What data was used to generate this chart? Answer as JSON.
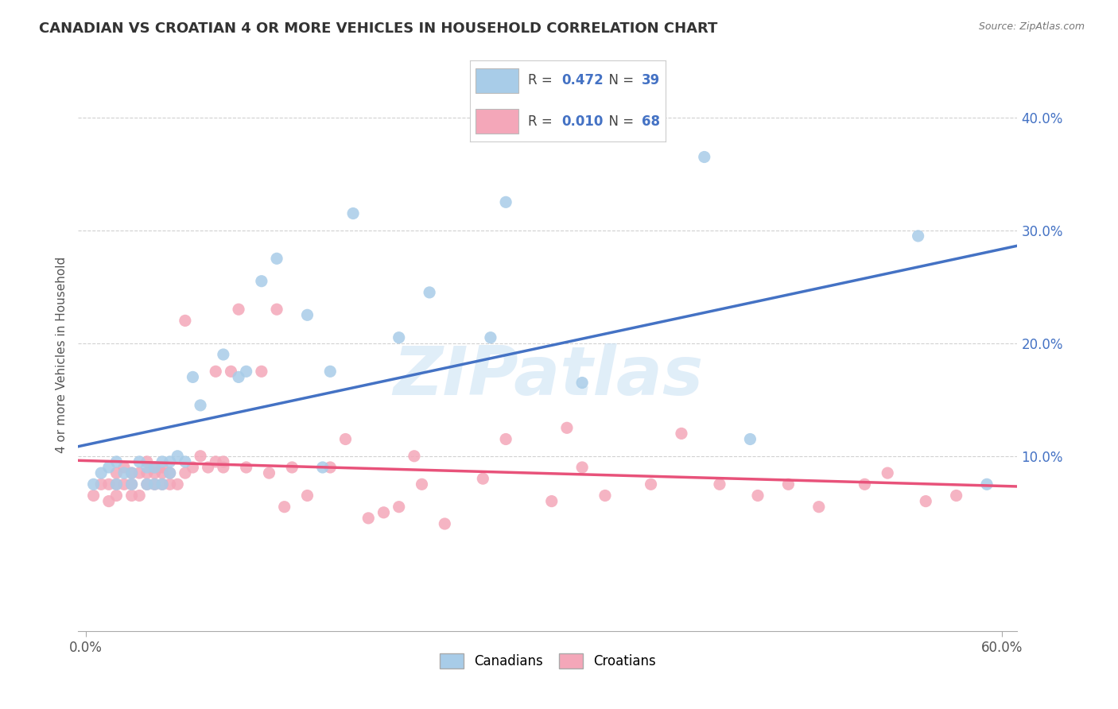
{
  "title": "CANADIAN VS CROATIAN 4 OR MORE VEHICLES IN HOUSEHOLD CORRELATION CHART",
  "source": "Source: ZipAtlas.com",
  "ylabel": "4 or more Vehicles in Household",
  "watermark": "ZIPatlas",
  "xlim": [
    -0.005,
    0.61
  ],
  "ylim": [
    -0.055,
    0.435
  ],
  "ytick_vals": [
    0.1,
    0.2,
    0.3,
    0.4
  ],
  "ytick_labels": [
    "10.0%",
    "20.0%",
    "30.0%",
    "40.0%"
  ],
  "xtick_vals": [
    0.0,
    0.6
  ],
  "xtick_labels": [
    "0.0%",
    "60.0%"
  ],
  "canadian_R": 0.472,
  "canadian_N": 39,
  "croatian_R": 0.01,
  "croatian_N": 68,
  "canadian_color": "#A8CCE8",
  "croatian_color": "#F4A7B9",
  "trendline_canadian_color": "#4472C4",
  "trendline_croatian_color": "#E8527A",
  "background_color": "#FFFFFF",
  "grid_color": "#CCCCCC",
  "canadians_x": [
    0.005,
    0.01,
    0.015,
    0.02,
    0.02,
    0.025,
    0.03,
    0.03,
    0.035,
    0.04,
    0.04,
    0.045,
    0.045,
    0.05,
    0.05,
    0.055,
    0.055,
    0.06,
    0.065,
    0.07,
    0.075,
    0.09,
    0.1,
    0.105,
    0.115,
    0.125,
    0.145,
    0.155,
    0.16,
    0.175,
    0.205,
    0.225,
    0.265,
    0.275,
    0.325,
    0.405,
    0.435,
    0.545,
    0.59
  ],
  "canadians_y": [
    0.075,
    0.085,
    0.09,
    0.075,
    0.095,
    0.085,
    0.075,
    0.085,
    0.095,
    0.075,
    0.09,
    0.075,
    0.09,
    0.075,
    0.095,
    0.085,
    0.095,
    0.1,
    0.095,
    0.17,
    0.145,
    0.19,
    0.17,
    0.175,
    0.255,
    0.275,
    0.225,
    0.09,
    0.175,
    0.315,
    0.205,
    0.245,
    0.205,
    0.325,
    0.165,
    0.365,
    0.115,
    0.295,
    0.075
  ],
  "croatians_x": [
    0.005,
    0.01,
    0.015,
    0.015,
    0.02,
    0.02,
    0.02,
    0.025,
    0.025,
    0.03,
    0.03,
    0.03,
    0.035,
    0.035,
    0.04,
    0.04,
    0.04,
    0.045,
    0.045,
    0.045,
    0.05,
    0.05,
    0.05,
    0.055,
    0.055,
    0.06,
    0.065,
    0.065,
    0.07,
    0.075,
    0.08,
    0.085,
    0.085,
    0.09,
    0.09,
    0.095,
    0.1,
    0.105,
    0.115,
    0.12,
    0.125,
    0.13,
    0.135,
    0.145,
    0.16,
    0.17,
    0.185,
    0.195,
    0.205,
    0.215,
    0.22,
    0.235,
    0.26,
    0.275,
    0.305,
    0.315,
    0.325,
    0.34,
    0.37,
    0.39,
    0.415,
    0.44,
    0.46,
    0.48,
    0.51,
    0.525,
    0.55,
    0.57
  ],
  "croatians_y": [
    0.065,
    0.075,
    0.06,
    0.075,
    0.065,
    0.075,
    0.085,
    0.09,
    0.075,
    0.065,
    0.075,
    0.085,
    0.065,
    0.085,
    0.075,
    0.085,
    0.095,
    0.075,
    0.085,
    0.09,
    0.075,
    0.085,
    0.09,
    0.075,
    0.085,
    0.075,
    0.085,
    0.22,
    0.09,
    0.1,
    0.09,
    0.095,
    0.175,
    0.09,
    0.095,
    0.175,
    0.23,
    0.09,
    0.175,
    0.085,
    0.23,
    0.055,
    0.09,
    0.065,
    0.09,
    0.115,
    0.045,
    0.05,
    0.055,
    0.1,
    0.075,
    0.04,
    0.08,
    0.115,
    0.06,
    0.125,
    0.09,
    0.065,
    0.075,
    0.12,
    0.075,
    0.065,
    0.075,
    0.055,
    0.075,
    0.085,
    0.06,
    0.065
  ]
}
